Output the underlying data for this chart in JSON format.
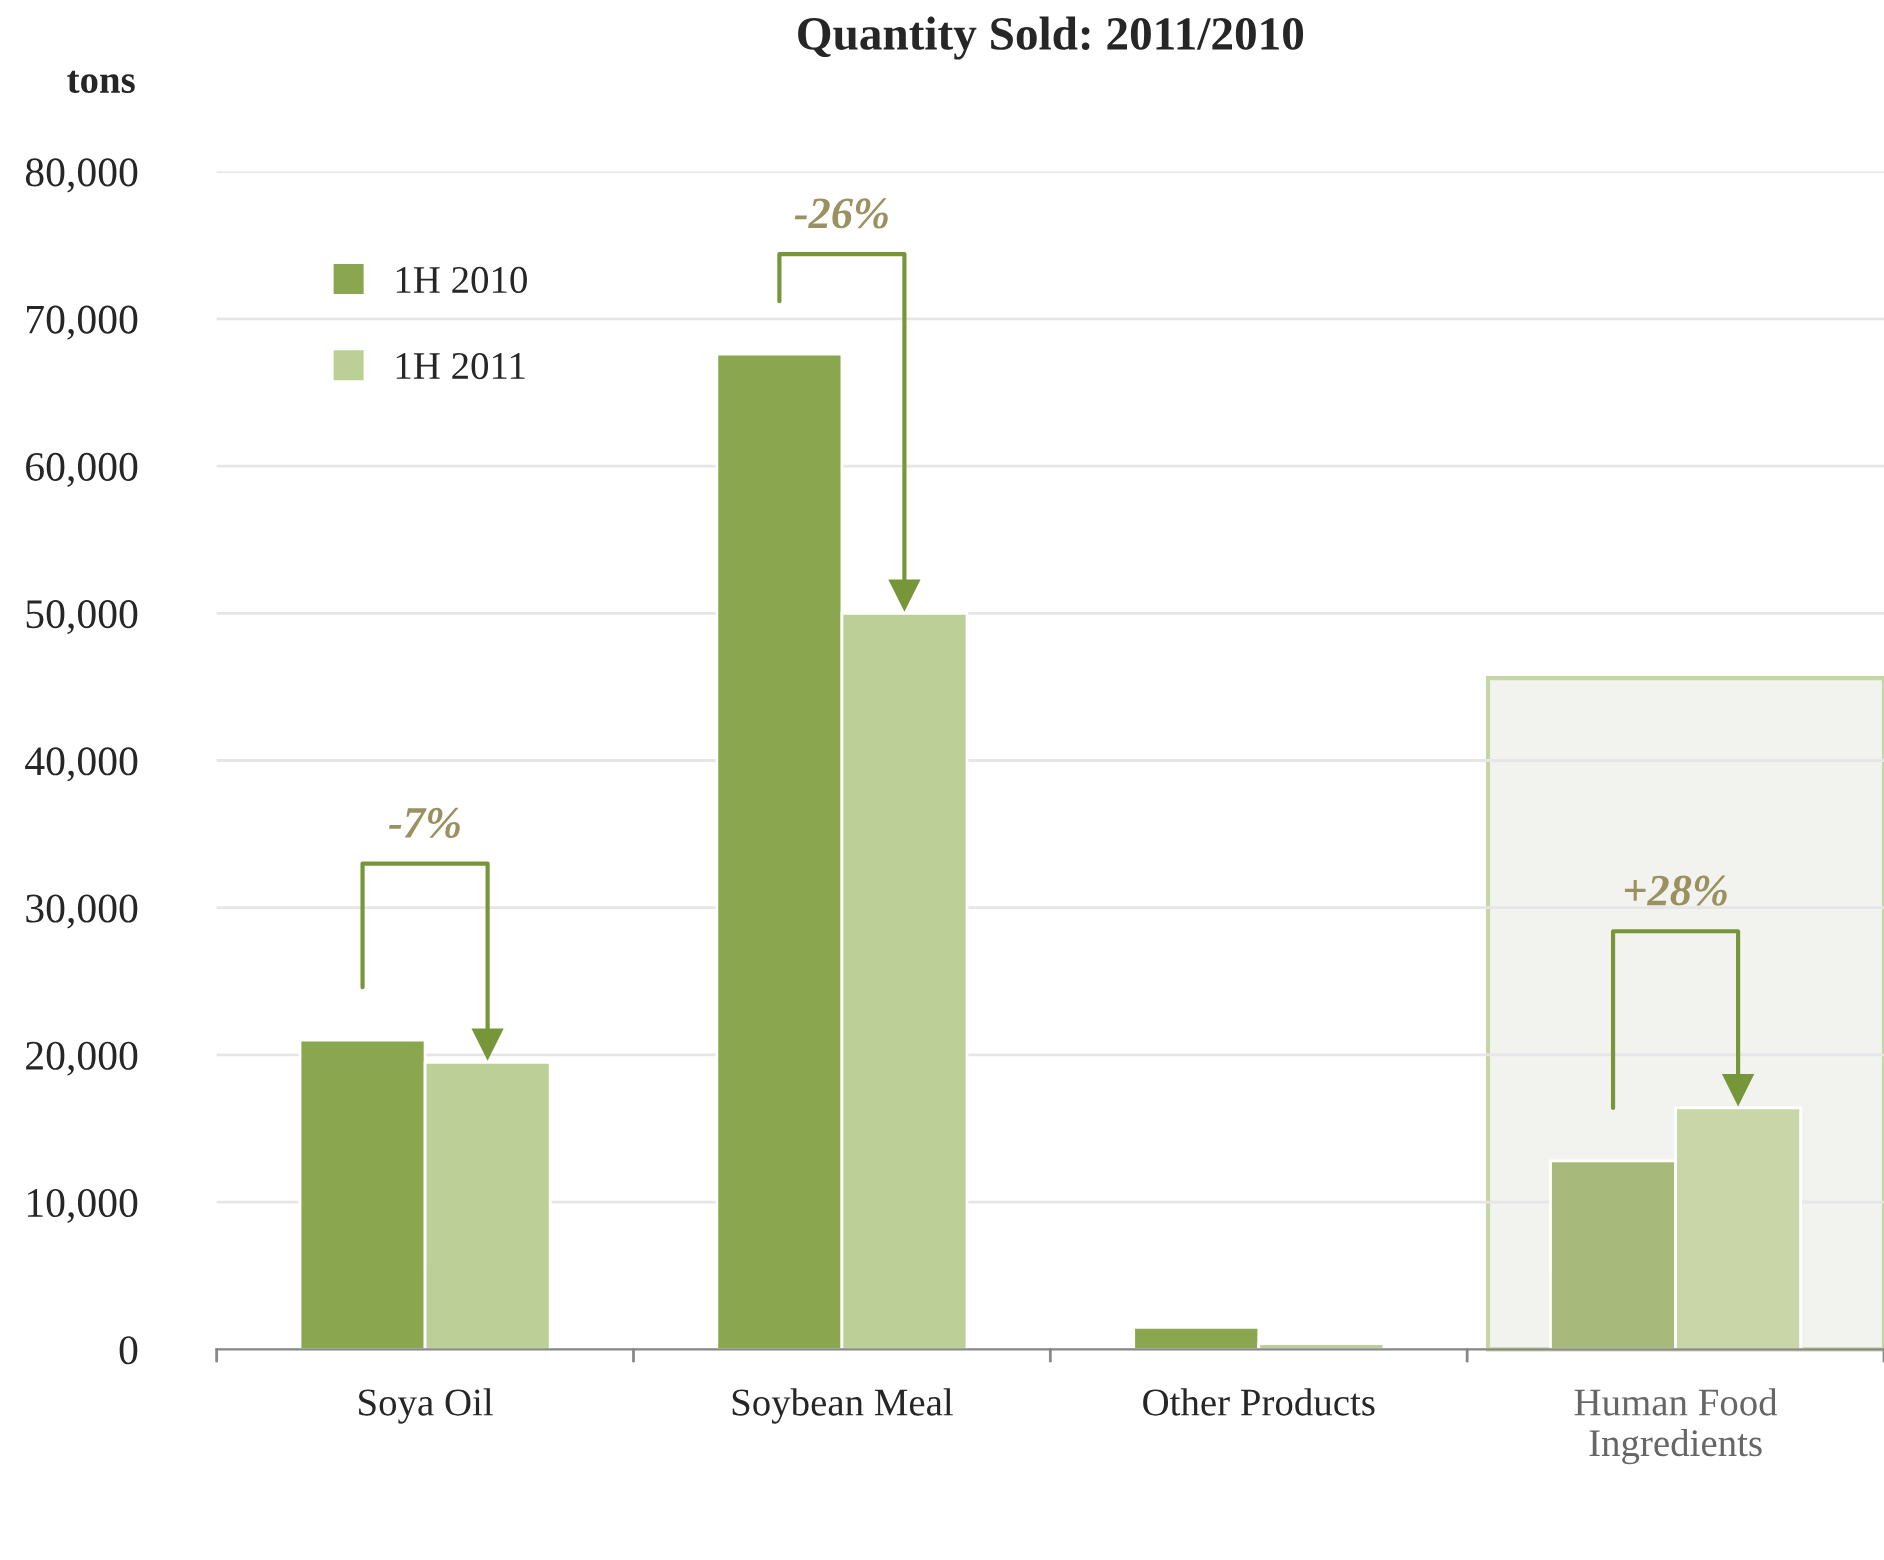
{
  "chart_data": {
    "type": "bar",
    "title": "Quantity Sold: 2011/2010",
    "ylabel": "tons",
    "categories": [
      "Soya Oil",
      "Soybean Meal",
      "Other Products",
      "Human Food Ingredients"
    ],
    "series": [
      {
        "name": "1H 2010",
        "color": "#8aa64e",
        "colors": [
          "#8aa64e",
          "#8aa64e",
          "#8aa64e",
          "#a7ba7c"
        ],
        "values": [
          21000,
          67600,
          1500,
          12800
        ]
      },
      {
        "name": "1H 2011",
        "color": "#bccf96",
        "colors": [
          "#bccf96",
          "#bccf96",
          "#bccf96",
          "#c8d6a8"
        ],
        "values": [
          19500,
          50000,
          400,
          16400
        ]
      }
    ],
    "ylim": [
      0,
      80000
    ],
    "yticks": [
      {
        "value": 0,
        "label": "0"
      },
      {
        "value": 10000,
        "label": "10,000"
      },
      {
        "value": 20000,
        "label": "20,000"
      },
      {
        "value": 30000,
        "label": "30,000"
      },
      {
        "value": 40000,
        "label": "40,000"
      },
      {
        "value": 50000,
        "label": "50,000"
      },
      {
        "value": 60000,
        "label": "60,000"
      },
      {
        "value": 70000,
        "label": "70,000"
      },
      {
        "value": 80000,
        "label": "80,000"
      }
    ],
    "grid": "y",
    "legend": "top left",
    "bands": [
      {
        "axis": "x",
        "from": "Human Food Ingredients",
        "to": "Human Food Ingredients",
        "color": "#f2f3ee"
      }
    ],
    "annotations": [
      "-7%",
      "-26%",
      "+28%"
    ]
  }
}
